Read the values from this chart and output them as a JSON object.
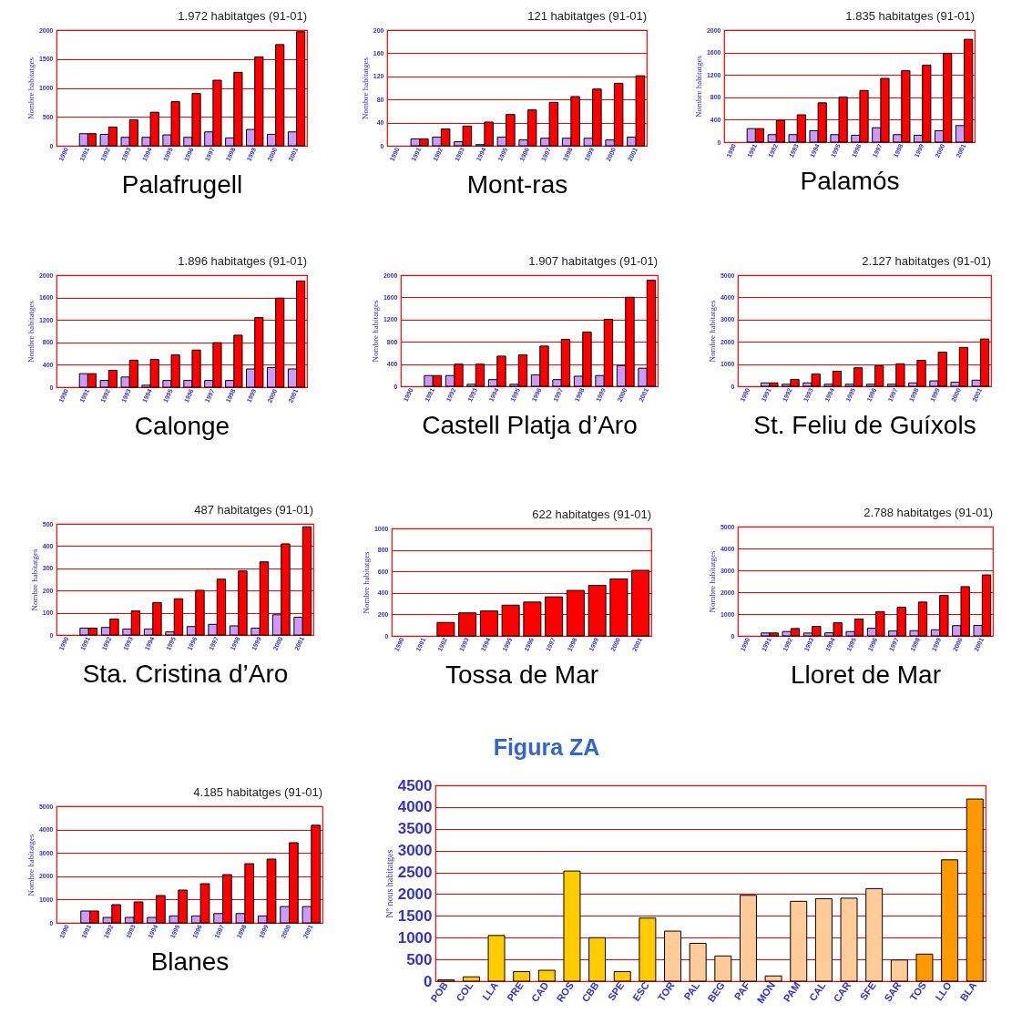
{
  "chart_data": [
    {
      "type": "bar",
      "title": "1.972 habitatges (91-01)",
      "xlabel": "Palafrugell",
      "ylabel": "Nombre habitatges",
      "categories": [
        "1990",
        "1991",
        "1992",
        "1993",
        "1994",
        "1995",
        "1996",
        "1997",
        "1998",
        "1999",
        "2000",
        "2001"
      ],
      "series": [
        {
          "color": "#cc99ff",
          "values": [
            null,
            209,
            198,
            146,
            146,
            188,
            146,
            240,
            136,
            282,
            198,
            240
          ]
        },
        {
          "color": "#ff0000",
          "values": [
            null,
            209,
            324,
            449,
            580,
            762,
            903,
            1133,
            1269,
            1535,
            1750,
            1972
          ]
        }
      ],
      "ylim": [
        0,
        2000
      ],
      "yticks": [
        0,
        500,
        1000,
        1500,
        2000
      ],
      "grid": "y"
    },
    {
      "type": "bar",
      "title": "121 habitatges (91-01)",
      "xlabel": "Mont-ras",
      "ylabel": "Nombre habitatges",
      "categories": [
        "1990",
        "1991",
        "1992",
        "1993",
        "1994",
        "1995",
        "1996",
        "1997",
        "1998",
        "1999",
        "2000",
        "2001"
      ],
      "series": [
        {
          "color": "#cc99ff",
          "values": [
            null,
            12,
            15,
            7,
            2,
            15,
            10,
            13,
            13,
            13,
            10,
            15
          ]
        },
        {
          "color": "#ff0000",
          "values": [
            null,
            12,
            29,
            34,
            41,
            54,
            62,
            75,
            85,
            98,
            108,
            121
          ]
        }
      ],
      "ylim": [
        0,
        200
      ],
      "yticks": [
        0,
        40,
        80,
        120,
        160,
        200
      ],
      "grid": "y"
    },
    {
      "type": "bar",
      "title": "1.835 habitatges (91-01)",
      "xlabel": "Palamós",
      "ylabel": "Nombre habitatges",
      "categories": [
        "1990",
        "1991",
        "1992",
        "1993",
        "1994",
        "1995",
        "1996",
        "1997",
        "1998",
        "1999",
        "2000",
        "2001"
      ],
      "series": [
        {
          "color": "#cc99ff",
          "values": [
            null,
            241,
            134,
            134,
            204,
            134,
            123,
            257,
            134,
            123,
            204,
            295
          ]
        },
        {
          "color": "#ff0000",
          "values": [
            null,
            241,
            386,
            488,
            702,
            804,
            922,
            1137,
            1276,
            1373,
            1582,
            1835
          ]
        }
      ],
      "ylim": [
        0,
        2000
      ],
      "yticks": [
        0,
        400,
        800,
        1200,
        1600,
        2000
      ],
      "grid": "y"
    },
    {
      "type": "bar",
      "title": "1.896 habitatges (91-01)",
      "xlabel": "Calonge",
      "ylabel": "Nombre habitatges",
      "categories": [
        "1990",
        "1991",
        "1992",
        "1993",
        "1994",
        "1995",
        "1996",
        "1997",
        "1998",
        "1999",
        "2000",
        "2001"
      ],
      "series": [
        {
          "color": "#cc99ff",
          "values": [
            null,
            241,
            120,
            181,
            36,
            120,
            120,
            120,
            120,
            325,
            349,
            325
          ]
        },
        {
          "color": "#ff0000",
          "values": [
            null,
            241,
            301,
            482,
            494,
            578,
            663,
            795,
            928,
            1241,
            1590,
            1896
          ]
        }
      ],
      "ylim": [
        0,
        2000
      ],
      "yticks": [
        0,
        400,
        800,
        1200,
        1600,
        2000
      ],
      "grid": "y"
    },
    {
      "type": "bar",
      "title": "1.907 habitatges (91-01)",
      "xlabel": "Castell Platja d’Aro",
      "ylabel": "Nombre habitatges",
      "categories": [
        "1990",
        "1991",
        "1992",
        "1993",
        "1994",
        "1995",
        "1996",
        "1997",
        "1998",
        "1999",
        "2000",
        "2001"
      ],
      "series": [
        {
          "color": "#cc99ff",
          "values": [
            null,
            193,
            193,
            36,
            120,
            36,
            205,
            120,
            181,
            193,
            373,
            325
          ]
        },
        {
          "color": "#ff0000",
          "values": [
            null,
            193,
            398,
            398,
            542,
            566,
            723,
            843,
            976,
            1205,
            1602,
            1907
          ]
        }
      ],
      "ylim": [
        0,
        2000
      ],
      "yticks": [
        0,
        400,
        800,
        1200,
        1600,
        2000
      ],
      "grid": "y"
    },
    {
      "type": "bar",
      "title": "2.127 habitatges (91-01)",
      "xlabel": "St. Feliu de Guíxols",
      "ylabel": "Nombre habitatges",
      "categories": [
        "1990",
        "1991",
        "1992",
        "1993",
        "1994",
        "1995",
        "1996",
        "1997",
        "1998",
        "1999",
        "2000",
        "2001"
      ],
      "series": [
        {
          "color": "#cc99ff",
          "values": [
            null,
            153,
            92,
            153,
            92,
            92,
            92,
            92,
            153,
            245,
            184,
            276
          ]
        },
        {
          "color": "#ff0000",
          "values": [
            null,
            153,
            307,
            552,
            675,
            828,
            920,
            1012,
            1166,
            1534,
            1748,
            2127
          ]
        }
      ],
      "ylim": [
        0,
        5000
      ],
      "yticks": [
        0,
        1000,
        2000,
        3000,
        4000,
        5000
      ],
      "grid": "y"
    },
    {
      "type": "bar",
      "title": "487 habitatges (91-01)",
      "xlabel": "Sta. Cristina d’Aro",
      "ylabel": "Nombre habitatges",
      "categories": [
        "1990",
        "1991",
        "1992",
        "1993",
        "1994",
        "1995",
        "1996",
        "1997",
        "1998",
        "1999",
        "2000",
        "2001"
      ],
      "series": [
        {
          "color": "#cc99ff",
          "values": [
            null,
            31,
            34,
            27,
            27,
            14,
            38,
            48,
            41,
            31,
            91,
            80
          ]
        },
        {
          "color": "#ff0000",
          "values": [
            null,
            31,
            72,
            108,
            146,
            163,
            201,
            251,
            288,
            329,
            410,
            487
          ]
        }
      ],
      "ylim": [
        0,
        500
      ],
      "yticks": [
        0,
        100,
        200,
        300,
        400,
        500
      ],
      "grid": "y"
    },
    {
      "type": "bar",
      "title": "622 habitatges (91-01)",
      "xlabel": "Tossa de Mar",
      "ylabel": "Nombre habitatges",
      "categories": [
        "1990",
        "1991",
        "1992",
        "1993",
        "1994",
        "1995",
        "1996",
        "1997",
        "1998",
        "1999",
        "2000",
        "2001"
      ],
      "series": [
        {
          "color": "#ff0000",
          "values": [
            null,
            null,
            125,
            214,
            232,
            286,
            315,
            363,
            423,
            470,
            530,
            610
          ]
        }
      ],
      "ylim": [
        0,
        1000
      ],
      "yticks": [
        0,
        200,
        400,
        600,
        800,
        1000
      ],
      "grid": "y"
    },
    {
      "type": "bar",
      "title": "2.788 habitatges (91-01)",
      "xlabel": "Lloret de Mar",
      "ylabel": "Nombre habitatges",
      "categories": [
        "1990",
        "1991",
        "1992",
        "1993",
        "1994",
        "1995",
        "1996",
        "1997",
        "1998",
        "1999",
        "2000",
        "2001"
      ],
      "series": [
        {
          "color": "#cc99ff",
          "values": [
            null,
            134,
            200,
            130,
            140,
            200,
            350,
            230,
            240,
            280,
            470,
            480
          ]
        },
        {
          "color": "#ff0000",
          "values": [
            null,
            134,
            337,
            437,
            605,
            774,
            1110,
            1312,
            1547,
            1850,
            2253,
            2788
          ]
        }
      ],
      "ylim": [
        0,
        5000
      ],
      "yticks": [
        0,
        1000,
        2000,
        3000,
        4000,
        5000
      ],
      "grid": "y"
    },
    {
      "type": "bar",
      "title": "4.185 habitatges (91-01)",
      "xlabel": "Blanes",
      "ylabel": "Nombre habitatges",
      "categories": [
        "1990",
        "1991",
        "1992",
        "1993",
        "1994",
        "1995",
        "1996",
        "1997",
        "1998",
        "1999",
        "2000",
        "2001"
      ],
      "series": [
        {
          "color": "#cc99ff",
          "values": [
            null,
            508,
            234,
            234,
            234,
            300,
            300,
            400,
            400,
            300,
            700,
            700
          ]
        },
        {
          "color": "#ff0000",
          "values": [
            null,
            508,
            781,
            898,
            1172,
            1406,
            1680,
            2070,
            2539,
            2734,
            3437,
            4185
          ]
        }
      ],
      "ylim": [
        0,
        5000
      ],
      "yticks": [
        0,
        1000,
        2000,
        3000,
        4000,
        5000
      ],
      "grid": "y"
    },
    {
      "type": "bar",
      "ylabel": "Nº nous habitatges",
      "annotations": [
        "Figura ZA"
      ],
      "categories": [
        "POB",
        "COL",
        "LLA",
        "PRE",
        "CAD",
        "ROS",
        "CBB",
        "SPE",
        "ESC",
        "TOR",
        "PAL",
        "BEG",
        "PAF",
        "MON",
        "PAM",
        "CAL",
        "CAR",
        "SFE",
        "SAR",
        "TOS",
        "LLO",
        "BLA"
      ],
      "values": [
        30,
        100,
        1050,
        220,
        250,
        2530,
        1000,
        220,
        1450,
        1150,
        870,
        580,
        1972,
        121,
        1835,
        1896,
        1907,
        2127,
        487,
        622,
        2788,
        4185
      ],
      "colors": [
        "#ffcc00",
        "#ffcc00",
        "#ffcc00",
        "#ffcc00",
        "#ffcc00",
        "#ffcc00",
        "#ffcc00",
        "#ffcc00",
        "#ffcc00",
        "#ffcc99",
        "#ffcc99",
        "#ffcc99",
        "#ffcc99",
        "#ffcc99",
        "#ffcc99",
        "#ffcc99",
        "#ffcc99",
        "#ffcc99",
        "#ffcc99",
        "#ff9900",
        "#ff9900",
        "#ff9900"
      ],
      "ylim": [
        0,
        4500
      ],
      "yticks": [
        0,
        500,
        1000,
        1500,
        2000,
        2500,
        3000,
        3500,
        4000,
        4500
      ],
      "grid": "y"
    }
  ]
}
